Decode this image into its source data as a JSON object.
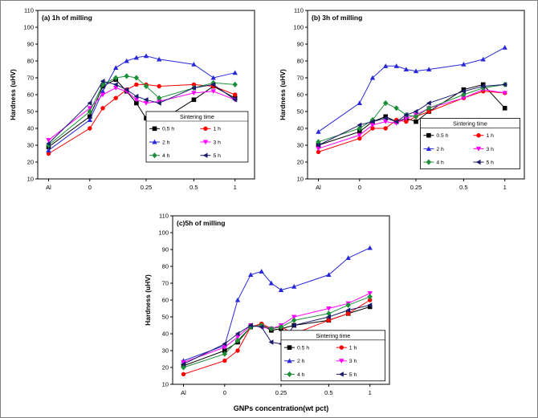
{
  "figure": {
    "y_axis_title": "Hardness (uHV)",
    "x_axis_title": "GNPs concentration(wt pct)",
    "legend_title": "Sintering time"
  },
  "chart_data": [
    {
      "type": "line",
      "title": "(a) 1h of milling",
      "xlabel": "",
      "ylabel": "Hardness (uHV)",
      "ylim": [
        10,
        110
      ],
      "y_tick_step": 10,
      "legend_title": "Sintering time",
      "categories": [
        "Al",
        "0",
        "0.05",
        "0.1",
        "0.15",
        "0.2",
        "0.25",
        "0.3",
        "0.5",
        "0.75",
        "1"
      ],
      "positions": [
        0.05,
        0.24,
        0.3,
        0.36,
        0.41,
        0.455,
        0.5,
        0.56,
        0.72,
        0.81,
        0.91
      ],
      "x_tick_labels": [
        {
          "pos": 0.05,
          "label": "Al"
        },
        {
          "pos": 0.24,
          "label": "0"
        },
        {
          "pos": 0.5,
          "label": "0.25"
        },
        {
          "pos": 0.72,
          "label": "0.5"
        },
        {
          "pos": 0.91,
          "label": "1"
        }
      ],
      "series": [
        {
          "name": "0,5 h",
          "color": "#000000",
          "marker": "square",
          "values": [
            29,
            47,
            65,
            69,
            62,
            55,
            46,
            44,
            57,
            65,
            58
          ]
        },
        {
          "name": "1 h",
          "color": "#ff0000",
          "marker": "circle",
          "values": [
            25,
            40,
            52,
            58,
            63,
            66,
            66,
            65,
            66,
            65,
            60
          ]
        },
        {
          "name": "2 h",
          "color": "#2828d8",
          "marker": "triangle-up",
          "values": [
            27,
            45,
            62,
            76,
            80,
            82,
            83,
            81,
            78,
            70,
            73
          ]
        },
        {
          "name": "3 h",
          "color": "#ff00ff",
          "marker": "triangle-down",
          "values": [
            33,
            52,
            60,
            64,
            62,
            57,
            55,
            56,
            61,
            62,
            57
          ]
        },
        {
          "name": "4 h",
          "color": "#1d8f3a",
          "marker": "diamond",
          "values": [
            30,
            50,
            66,
            70,
            71,
            70,
            65,
            58,
            64,
            67,
            66
          ]
        },
        {
          "name": "5 h",
          "color": "#1b1b6e",
          "marker": "triangle-left",
          "values": [
            31,
            55,
            68,
            66,
            63,
            59,
            57,
            55,
            64,
            66,
            57
          ]
        }
      ]
    },
    {
      "type": "line",
      "title": "(b) 3h of milling",
      "xlabel": "",
      "ylabel": "Hardness (uHV)",
      "ylim": [
        10,
        110
      ],
      "y_tick_step": 10,
      "legend_title": "Sintering time",
      "categories": [
        "Al",
        "0",
        "0.05",
        "0.1",
        "0.15",
        "0.2",
        "0.25",
        "0.3",
        "0.5",
        "0.75",
        "1"
      ],
      "positions": [
        0.05,
        0.24,
        0.3,
        0.36,
        0.41,
        0.455,
        0.5,
        0.56,
        0.72,
        0.81,
        0.91
      ],
      "x_tick_labels": [
        {
          "pos": 0.05,
          "label": "Al"
        },
        {
          "pos": 0.24,
          "label": "0"
        },
        {
          "pos": 0.5,
          "label": "0.25"
        },
        {
          "pos": 0.72,
          "label": "0.5"
        },
        {
          "pos": 0.91,
          "label": "1"
        }
      ],
      "series": [
        {
          "name": "0.5 h",
          "color": "#000000",
          "marker": "square",
          "values": [
            30,
            38,
            44,
            47,
            44,
            46,
            44,
            50,
            63,
            66,
            52
          ]
        },
        {
          "name": "1 h",
          "color": "#ff0000",
          "marker": "circle",
          "values": [
            26,
            34,
            40,
            40,
            45,
            44,
            47,
            50,
            58,
            62,
            61
          ]
        },
        {
          "name": "2 h",
          "color": "#2828d8",
          "marker": "triangle-up",
          "values": [
            38,
            55,
            70,
            77,
            77,
            75,
            74,
            75,
            78,
            81,
            88
          ]
        },
        {
          "name": "3 h",
          "color": "#ff00ff",
          "marker": "triangle-down",
          "values": [
            28,
            36,
            42,
            44,
            43,
            46,
            48,
            52,
            58,
            63,
            61
          ]
        },
        {
          "name": "4 h",
          "color": "#1d8f3a",
          "marker": "diamond",
          "values": [
            32,
            40,
            45,
            55,
            52,
            48,
            47,
            52,
            60,
            64,
            66
          ]
        },
        {
          "name": "5 h",
          "color": "#1b1b6e",
          "marker": "triangle-left",
          "values": [
            30,
            42,
            44,
            46,
            44,
            48,
            50,
            55,
            62,
            65,
            66
          ]
        }
      ]
    },
    {
      "type": "line",
      "title": "(c)5h of milling",
      "xlabel": "GNPs concentration(wt pct)",
      "ylabel": "Hardness (uHV)",
      "ylim": [
        10,
        110
      ],
      "y_tick_step": 10,
      "legend_title": "Sintering time",
      "categories": [
        "Al",
        "0",
        "0.05",
        "0.1",
        "0.15",
        "0.2",
        "0.25",
        "0.3",
        "0.5",
        "0.75",
        "1"
      ],
      "positions": [
        0.05,
        0.24,
        0.3,
        0.36,
        0.41,
        0.455,
        0.5,
        0.56,
        0.72,
        0.81,
        0.91
      ],
      "x_tick_labels": [
        {
          "pos": 0.05,
          "label": "Al"
        },
        {
          "pos": 0.24,
          "label": "0"
        },
        {
          "pos": 0.5,
          "label": "0.25"
        },
        {
          "pos": 0.72,
          "label": "0.5"
        },
        {
          "pos": 0.91,
          "label": "1"
        }
      ],
      "series": [
        {
          "name": "0.5 h",
          "color": "#000000",
          "marker": "square",
          "values": [
            21,
            30,
            35,
            44,
            45,
            42,
            43,
            45,
            48,
            52,
            56
          ]
        },
        {
          "name": "1 h",
          "color": "#ff0000",
          "marker": "circle",
          "values": [
            16,
            24,
            30,
            44,
            46,
            43,
            44,
            40,
            48,
            52,
            60
          ]
        },
        {
          "name": "2 h",
          "color": "#2828d8",
          "marker": "triangle-up",
          "values": [
            24,
            33,
            60,
            75,
            77,
            70,
            66,
            68,
            75,
            85,
            91
          ]
        },
        {
          "name": "3 h",
          "color": "#ff00ff",
          "marker": "triangle-down",
          "values": [
            23,
            32,
            38,
            45,
            44,
            43,
            45,
            50,
            55,
            58,
            64
          ]
        },
        {
          "name": "4 h",
          "color": "#1d8f3a",
          "marker": "diamond",
          "values": [
            20,
            28,
            36,
            44,
            45,
            43,
            44,
            48,
            52,
            57,
            62
          ]
        },
        {
          "name": "5 h",
          "color": "#1b1b6e",
          "marker": "triangle-left",
          "values": [
            22,
            34,
            40,
            45,
            44,
            35,
            34,
            45,
            50,
            54,
            57
          ]
        }
      ]
    }
  ]
}
